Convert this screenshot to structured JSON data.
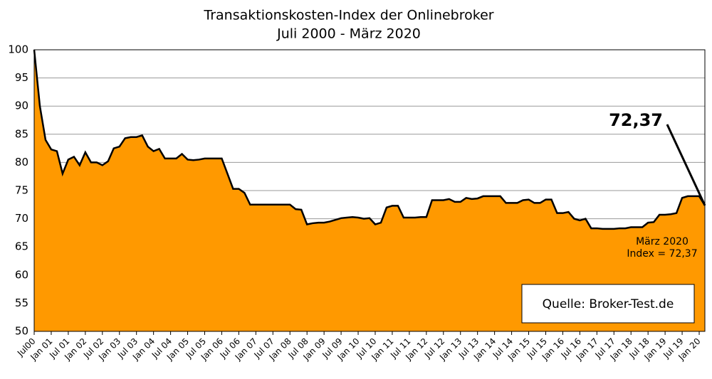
{
  "chart_data": {
    "type": "area",
    "title": "Transaktionskosten-Index der Onlinebroker",
    "subtitle": "Juli 2000 - März 2020",
    "categories": [
      "Jul00",
      null,
      null,
      "Jan 01",
      null,
      null,
      "Jul 01",
      null,
      null,
      "Jan 02",
      null,
      null,
      "Jul 02",
      null,
      null,
      "Jan 03",
      null,
      null,
      "Jul 03",
      null,
      null,
      "Jan 04",
      null,
      null,
      "Jul 04",
      null,
      null,
      "Jan 05",
      null,
      null,
      "Jul 05",
      null,
      null,
      "Jan 06",
      null,
      null,
      "Jul 06",
      null,
      null,
      "Jan 07",
      null,
      null,
      "Jul 07",
      null,
      null,
      "Jan 08",
      null,
      null,
      "Jul 08",
      null,
      null,
      "Jan 09",
      null,
      null,
      "Jul 09",
      null,
      null,
      "Jan 10",
      null,
      null,
      "Jul 10",
      null,
      null,
      "Jan 11",
      null,
      null,
      "Jul 11",
      null,
      null,
      "Jan 12",
      null,
      null,
      "Jul 12",
      null,
      null,
      "Jan 13",
      null,
      null,
      "Jul 13",
      null,
      null,
      "Jan 14",
      null,
      null,
      "Jul 14",
      null,
      null,
      "Jan 15",
      null,
      null,
      "Jul 15",
      null,
      null,
      "Jan 16",
      null,
      null,
      "Jul 16",
      null,
      null,
      "Jan 17",
      null,
      null,
      "Jul 17",
      null,
      null,
      "Jan 18",
      null,
      null,
      "Jul 18",
      null,
      null,
      "Jan 19",
      null,
      null,
      "Jul 19",
      null,
      null,
      "Jan 20",
      null
    ],
    "values": [
      100,
      90,
      84,
      82.3,
      82,
      78,
      80.5,
      81,
      79.5,
      81.8,
      80,
      80,
      79.5,
      80.2,
      82.5,
      82.8,
      84.3,
      84.5,
      84.5,
      84.8,
      82.8,
      82,
      82.4,
      80.7,
      80.7,
      80.7,
      81.5,
      80.5,
      80.4,
      80.5,
      80.7,
      80.7,
      80.7,
      80.7,
      78,
      75.3,
      75.3,
      74.6,
      72.5,
      72.5,
      72.5,
      72.5,
      72.5,
      72.5,
      72.5,
      72.5,
      71.7,
      71.6,
      69,
      69.2,
      69.3,
      69.3,
      69.5,
      69.8,
      70.1,
      70.2,
      70.3,
      70.2,
      70,
      70.1,
      69,
      69.3,
      72,
      72.3,
      72.3,
      70.2,
      70.2,
      70.2,
      70.3,
      70.3,
      73.3,
      73.3,
      73.3,
      73.5,
      73,
      73,
      73.7,
      73.5,
      73.6,
      74,
      74,
      74,
      74,
      72.8,
      72.8,
      72.8,
      73.3,
      73.4,
      72.8,
      72.8,
      73.4,
      73.4,
      71,
      71,
      71.2,
      70,
      69.7,
      70,
      68.3,
      68.3,
      68.2,
      68.2,
      68.2,
      68.3,
      68.3,
      68.5,
      68.5,
      68.5,
      69.3,
      69.4,
      70.7,
      70.7,
      70.8,
      71,
      73.7,
      74,
      74,
      74,
      72.37
    ],
    "color": "#ff9900",
    "line_color": "#000000",
    "ylim": [
      50,
      100
    ],
    "yticks": [
      50,
      55,
      60,
      65,
      70,
      75,
      80,
      85,
      90,
      95,
      100
    ],
    "grid": true,
    "annotations": [
      "72,37",
      "März 2020",
      "Index = 72,37",
      "Quelle: Broker-Test.de"
    ]
  }
}
